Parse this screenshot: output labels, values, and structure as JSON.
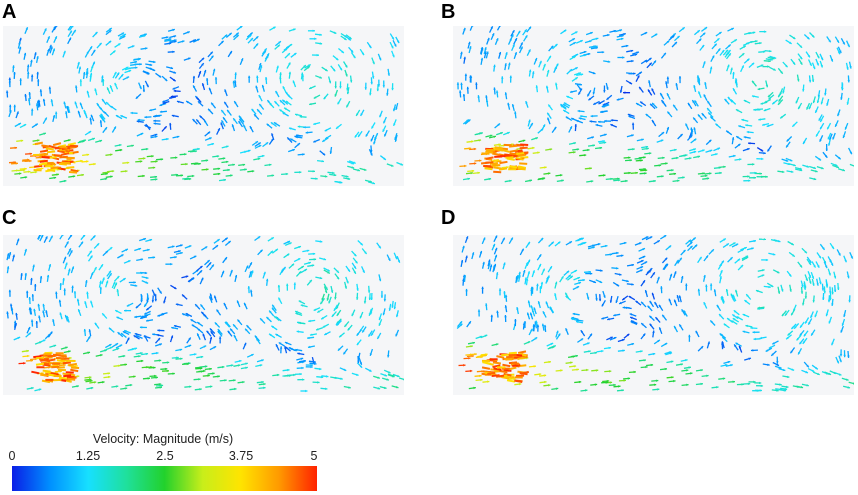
{
  "panels": [
    {
      "label": "A",
      "jet_spread": 1.0,
      "vortex": "upper-right"
    },
    {
      "label": "B",
      "jet_spread": 1.0,
      "vortex": "upper-right"
    },
    {
      "label": "C",
      "jet_spread": 0.9,
      "vortex": "upper-right"
    },
    {
      "label": "D",
      "jet_spread": 1.1,
      "vortex": "upper-right"
    }
  ],
  "legend": {
    "title": "Velocity: Magnitude (m/s)",
    "ticks": [
      "0",
      "1.25",
      "2.5",
      "3.75",
      "5"
    ],
    "colormap": [
      "#0a1ee6",
      "#0090ff",
      "#17e0ff",
      "#1fe09c",
      "#22d12c",
      "#c8ee1a",
      "#ffe400",
      "#ff9a00",
      "#ff2200"
    ]
  }
}
